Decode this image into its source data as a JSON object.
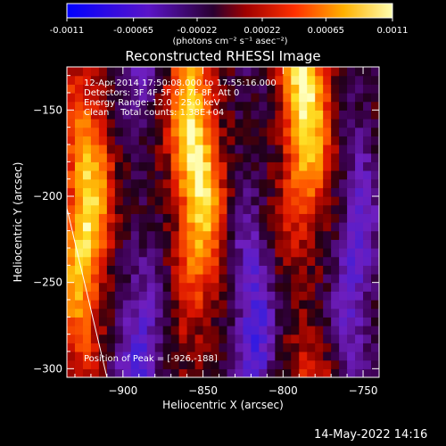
{
  "chart_data": {
    "type": "heatmap",
    "title": "Reconstructed RHESSI Image",
    "xlabel": "Heliocentric X (arcsec)",
    "ylabel": "Heliocentric Y (arcsec)",
    "xlim": [
      -935,
      -740
    ],
    "ylim": [
      -305,
      -125
    ],
    "xticks": [
      -900,
      -850,
      -800,
      -750
    ],
    "yticks": [
      -150,
      -200,
      -250,
      -300
    ],
    "colorbar": {
      "range": [
        -0.0011,
        0.0011
      ],
      "tick_values": [
        -0.0011,
        -0.00065,
        -0.00022,
        0.00022,
        0.00065,
        0.0011
      ],
      "tick_labels": [
        "-0.0011",
        "-0.00065",
        "-0.00022",
        "0.00022",
        "0.00065",
        "0.0011"
      ],
      "units": "(photons cm⁻² s⁻¹ asec⁻²)"
    },
    "bands": [
      {
        "x": -927,
        "width": 14,
        "peak": 0.001
      },
      {
        "x": -893,
        "width": 14,
        "peak": -0.0006
      },
      {
        "x": -857,
        "width": 14,
        "peak": 0.0011
      },
      {
        "x": -823,
        "width": 12,
        "peak": -0.0006
      },
      {
        "x": -790,
        "width": 14,
        "peak": 0.0011
      },
      {
        "x": -757,
        "width": 12,
        "peak": -0.0005
      }
    ],
    "limb_line": {
      "x": [
        -935,
        -910
      ],
      "y": [
        -207,
        -308
      ]
    },
    "annotations": [
      "12-Apr-2014 17:50:08.000 to 17:55:16.000",
      "Detectors: 3F 4F 5F 6F 7F 8F, Att 0",
      "Energy Range: 12.0 - 25.0 keV",
      "Clean    Total counts: 1.38E+04",
      "Position of Peak = [-926,-188]"
    ],
    "peak_position": [
      -926,
      -188
    ]
  },
  "footer": {
    "date": "14-May-2022 14:16"
  }
}
